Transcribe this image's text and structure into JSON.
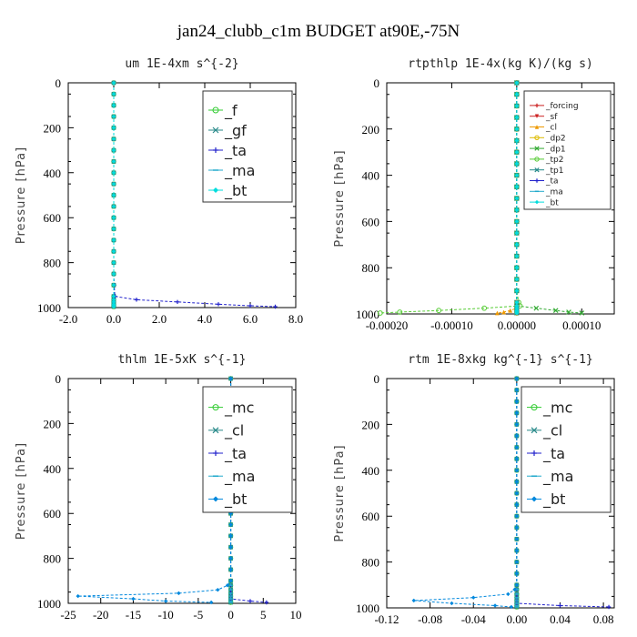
{
  "figure": {
    "title": "jan24_clubb_c1m  BUDGET at90E,-75N"
  },
  "chart_data": [
    {
      "type": "line",
      "title": "um  1E-4xm s^{-2}",
      "xlabel": "",
      "ylabel": "Pressure [hPa]",
      "xlim": [
        -2.0,
        8.0
      ],
      "ylim": [
        1000,
        0
      ],
      "x_ticks": [
        "-2.0",
        "0.0",
        "2.0",
        "4.0",
        "6.0",
        "8.0"
      ],
      "y_ticks": [
        "0",
        "200",
        "400",
        "600",
        "800",
        "1000"
      ],
      "legend_position": "top-right",
      "legend_font": 16,
      "y": [
        0,
        50,
        100,
        150,
        200,
        250,
        300,
        350,
        400,
        450,
        500,
        550,
        600,
        650,
        700,
        750,
        800,
        850,
        900,
        950,
        965,
        975,
        985,
        992,
        996
      ],
      "series": [
        {
          "name": "_f",
          "color": "#33cc33",
          "marker": "o",
          "values": [
            0,
            0,
            0,
            0,
            0,
            0,
            0,
            0,
            0,
            0,
            0,
            0,
            0,
            0,
            0,
            0,
            0,
            0,
            0,
            0,
            0,
            0,
            0,
            0,
            0
          ]
        },
        {
          "name": "_gf",
          "color": "#2a8a8a",
          "marker": "x",
          "values": [
            0,
            0,
            0,
            0,
            0,
            0,
            0,
            0,
            0,
            0,
            0,
            0,
            0,
            0,
            0,
            0,
            0,
            0,
            0,
            0,
            0,
            0,
            0,
            0,
            0
          ]
        },
        {
          "name": "_ta",
          "color": "#2222cc",
          "marker": "+",
          "values": [
            0,
            0,
            0,
            0,
            0,
            0,
            0,
            0,
            0,
            0,
            0,
            0,
            0,
            0,
            0,
            0,
            0,
            0,
            0.02,
            0.05,
            1.0,
            2.8,
            4.6,
            6.0,
            7.1
          ]
        },
        {
          "name": "_ma",
          "color": "#22aacc",
          "marker": "-",
          "values": [
            0,
            0,
            0,
            0,
            0,
            0,
            0,
            0,
            0,
            0,
            0,
            0,
            0,
            0,
            0,
            0,
            0,
            0,
            0,
            0,
            0,
            0,
            0,
            0,
            0
          ]
        },
        {
          "name": "_bt",
          "color": "#00dddd",
          "marker": "D",
          "values": [
            0,
            0,
            0,
            0,
            0,
            0,
            0,
            0,
            0,
            0,
            0,
            0,
            0,
            0,
            0,
            0,
            0,
            0,
            0,
            0,
            0,
            0,
            0,
            0,
            0
          ]
        }
      ]
    },
    {
      "type": "line",
      "title": "rtpthlp  1E-4x(kg K)/(kg s)",
      "xlabel": "",
      "ylabel": "Pressure [hPa]",
      "xlim": [
        -0.0002,
        0.00015
      ],
      "ylim": [
        1000,
        0
      ],
      "x_ticks": [
        "-0.00020",
        "-0.00010",
        "0.00000",
        "0.00010"
      ],
      "y_ticks": [
        "0",
        "200",
        "400",
        "600",
        "800",
        "1000"
      ],
      "legend_position": "top-right",
      "legend_font": 9,
      "y": [
        0,
        50,
        100,
        150,
        200,
        250,
        300,
        350,
        400,
        450,
        500,
        550,
        600,
        650,
        700,
        750,
        800,
        850,
        900,
        950,
        965,
        975,
        985,
        992,
        996
      ],
      "series": [
        {
          "name": "_forcing",
          "color": "#cc2222",
          "marker": "+",
          "values": [
            0,
            0,
            0,
            0,
            0,
            0,
            0,
            0,
            0,
            0,
            0,
            0,
            0,
            0,
            0,
            0,
            0,
            0,
            0,
            0,
            0,
            0,
            0,
            0,
            0
          ]
        },
        {
          "name": "_sf",
          "color": "#cc2222",
          "marker": "v",
          "values": [
            0,
            0,
            0,
            0,
            0,
            0,
            0,
            0,
            0,
            0,
            0,
            0,
            0,
            0,
            0,
            0,
            0,
            0,
            0,
            0,
            0,
            0,
            0,
            0,
            0
          ]
        },
        {
          "name": "_cl",
          "color": "#ee9900",
          "marker": "^",
          "values": [
            0,
            0,
            0,
            0,
            0,
            0,
            0,
            0,
            0,
            0,
            0,
            0,
            0,
            0,
            0,
            0,
            0,
            0,
            0,
            0,
            0,
            0,
            -1e-05,
            -2e-05,
            -3e-05
          ]
        },
        {
          "name": "_dp2",
          "color": "#ddbb00",
          "marker": "o",
          "values": [
            0,
            0,
            0,
            0,
            0,
            0,
            0,
            0,
            0,
            0,
            0,
            0,
            0,
            0,
            0,
            0,
            0,
            0,
            0,
            0,
            0,
            0,
            0,
            0,
            0
          ]
        },
        {
          "name": "_dp1",
          "color": "#33aa33",
          "marker": "x",
          "values": [
            0,
            0,
            0,
            0,
            0,
            0,
            0,
            0,
            0,
            0,
            0,
            0,
            0,
            0,
            0,
            0,
            0,
            0,
            0,
            0,
            0,
            3e-05,
            6e-05,
            8e-05,
            0.0001
          ]
        },
        {
          "name": "_tp2",
          "color": "#55cc33",
          "marker": "o",
          "values": [
            0,
            0,
            0,
            0,
            0,
            0,
            0,
            0,
            0,
            0,
            0,
            0,
            0,
            0,
            0,
            0,
            0,
            0,
            0,
            3e-06,
            5e-06,
            -5e-05,
            -0.00012,
            -0.00018,
            -0.00021
          ]
        },
        {
          "name": "_tp1",
          "color": "#228888",
          "marker": "x",
          "values": [
            0,
            0,
            0,
            0,
            0,
            0,
            0,
            0,
            0,
            0,
            0,
            0,
            0,
            0,
            0,
            0,
            0,
            0,
            0,
            0,
            0,
            0,
            0,
            0,
            0
          ]
        },
        {
          "name": "_ta",
          "color": "#2222cc",
          "marker": "+",
          "values": [
            0,
            0,
            0,
            0,
            0,
            0,
            0,
            0,
            0,
            0,
            0,
            0,
            0,
            0,
            0,
            0,
            0,
            0,
            0,
            0,
            0,
            0,
            0,
            0,
            0
          ]
        },
        {
          "name": "_ma",
          "color": "#22aacc",
          "marker": "-",
          "values": [
            0,
            0,
            0,
            0,
            0,
            0,
            0,
            0,
            0,
            0,
            0,
            0,
            0,
            0,
            0,
            0,
            0,
            0,
            0,
            0,
            0,
            0,
            0,
            0,
            0
          ]
        },
        {
          "name": "_bt",
          "color": "#00dddd",
          "marker": "D",
          "values": [
            0,
            0,
            0,
            0,
            0,
            0,
            0,
            0,
            0,
            0,
            0,
            0,
            0,
            0,
            0,
            0,
            0,
            0,
            0,
            0,
            0,
            0,
            0,
            0,
            0
          ]
        }
      ]
    },
    {
      "type": "line",
      "title": "thlm  1E-5xK s^{-1}",
      "xlabel": "",
      "ylabel": "Pressure [hPa]",
      "xlim": [
        -25,
        10
      ],
      "ylim": [
        1000,
        0
      ],
      "x_ticks": [
        "-25",
        "-20",
        "-15",
        "-10",
        "-5",
        "0",
        "5",
        "10"
      ],
      "y_ticks": [
        "0",
        "200",
        "400",
        "600",
        "800",
        "1000"
      ],
      "legend_position": "top-right",
      "legend_font": 16,
      "y": [
        0,
        50,
        100,
        150,
        200,
        250,
        300,
        350,
        400,
        450,
        500,
        550,
        600,
        650,
        700,
        750,
        800,
        850,
        900,
        920,
        940,
        955,
        968,
        980,
        990,
        996
      ],
      "series": [
        {
          "name": "_mc",
          "color": "#33cc33",
          "marker": "o",
          "values": [
            0,
            0,
            0,
            0,
            0,
            0,
            0,
            0,
            0,
            0,
            0,
            0,
            0,
            0,
            0,
            0,
            0,
            0,
            0,
            0,
            0,
            0,
            0,
            0,
            0,
            0
          ]
        },
        {
          "name": "_cl",
          "color": "#2a8a8a",
          "marker": "x",
          "values": [
            0,
            0,
            0,
            0,
            0,
            0,
            0,
            0,
            0,
            0,
            0,
            0,
            0,
            0,
            0,
            0,
            0,
            0,
            0,
            0,
            0,
            0,
            0,
            0,
            0,
            0
          ]
        },
        {
          "name": "_ta",
          "color": "#2222cc",
          "marker": "+",
          "values": [
            0,
            0,
            0,
            0,
            0,
            0,
            0,
            0,
            0,
            0,
            0,
            0,
            0,
            0,
            0,
            0,
            0,
            0,
            0,
            0,
            0,
            0,
            0,
            0,
            3,
            5.5
          ]
        },
        {
          "name": "_ma",
          "color": "#22aacc",
          "marker": "-",
          "values": [
            0,
            0,
            0,
            0,
            0,
            0,
            0,
            0,
            0,
            0,
            0,
            0,
            0,
            0,
            0,
            0,
            0,
            0,
            0,
            0,
            0,
            0,
            0,
            0,
            0,
            0
          ]
        },
        {
          "name": "_bt",
          "color": "#0088dd",
          "marker": "D",
          "values": [
            0,
            0,
            0,
            0,
            0,
            0,
            0,
            0,
            0,
            0,
            0,
            0,
            0,
            0,
            0,
            0,
            0,
            0,
            0,
            -0.5,
            -2,
            -8,
            -23.5,
            -15,
            -10,
            -3
          ]
        }
      ]
    },
    {
      "type": "line",
      "title": "rtm  1E-8xkg kg^{-1} s^{-1}",
      "xlabel": "",
      "ylabel": "Pressure [hPa]",
      "xlim": [
        -0.12,
        0.09
      ],
      "ylim": [
        1000,
        0
      ],
      "x_ticks": [
        "-0.12",
        "-0.08",
        "-0.04",
        "0.00",
        "0.04",
        "0.08"
      ],
      "y_ticks": [
        "0",
        "200",
        "400",
        "600",
        "800",
        "1000"
      ],
      "legend_position": "top-right",
      "legend_font": 16,
      "y": [
        0,
        50,
        100,
        150,
        200,
        250,
        300,
        350,
        400,
        450,
        500,
        550,
        600,
        650,
        700,
        750,
        800,
        850,
        900,
        920,
        940,
        955,
        968,
        980,
        990,
        996
      ],
      "series": [
        {
          "name": "_mc",
          "color": "#33cc33",
          "marker": "o",
          "values": [
            0,
            0,
            0,
            0,
            0,
            0,
            0,
            0,
            0,
            0,
            0,
            0,
            0,
            0,
            0,
            0,
            0,
            0,
            0,
            0,
            0,
            0,
            0,
            0,
            0,
            0
          ]
        },
        {
          "name": "_cl",
          "color": "#2a8a8a",
          "marker": "x",
          "values": [
            0,
            0,
            0,
            0,
            0,
            0,
            0,
            0,
            0,
            0,
            0,
            0,
            0,
            0,
            0,
            0,
            0,
            0,
            0,
            0,
            0,
            0,
            0,
            0,
            0,
            0
          ]
        },
        {
          "name": "_ta",
          "color": "#2222cc",
          "marker": "+",
          "values": [
            0,
            0,
            0,
            0,
            0,
            0,
            0,
            0,
            0,
            0,
            0,
            0,
            0,
            0,
            0,
            0,
            0,
            0,
            0,
            0,
            0,
            0,
            0,
            0,
            0.04,
            0.085
          ]
        },
        {
          "name": "_ma",
          "color": "#22aacc",
          "marker": "-",
          "values": [
            0,
            0,
            0,
            0,
            0,
            0,
            0,
            0,
            0,
            0,
            0,
            0,
            0,
            0,
            0,
            0,
            0,
            0,
            0,
            0,
            0,
            0,
            0,
            0,
            0,
            0
          ]
        },
        {
          "name": "_bt",
          "color": "#0088dd",
          "marker": "D",
          "values": [
            0,
            0,
            0,
            0,
            0,
            0,
            0,
            0,
            0,
            0,
            0,
            0,
            0,
            0,
            0,
            0,
            0,
            0,
            0,
            -0.002,
            -0.008,
            -0.04,
            -0.095,
            -0.06,
            -0.02,
            -0.005
          ]
        }
      ]
    }
  ]
}
